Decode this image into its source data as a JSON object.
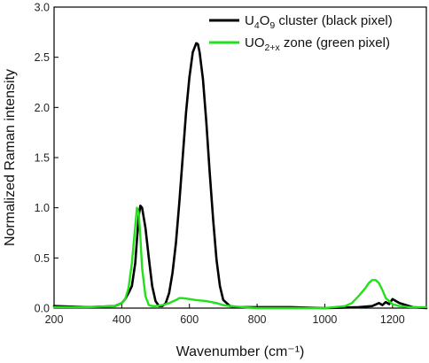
{
  "chart_data": {
    "type": "line",
    "title": "",
    "xlabel": "Wavenumber (cm⁻¹)",
    "ylabel": "Normalized Raman intensity",
    "xlim": [
      200,
      1300
    ],
    "ylim": [
      0,
      3.0
    ],
    "xticks": [
      200,
      400,
      600,
      800,
      1000,
      1200
    ],
    "xtick_labels": [
      "200",
      "400",
      "600",
      "800",
      "1000",
      "1200"
    ],
    "yticks": [
      0,
      0.5,
      1.0,
      1.5,
      2.0,
      2.5,
      3.0
    ],
    "ytick_labels": [
      "0.0",
      "0.5",
      "1.0",
      "1.5",
      "2.0",
      "2.5",
      "3.0"
    ],
    "grid": false,
    "legend_position": "top-right",
    "series": [
      {
        "name": "U4O9 cluster (black pixel)",
        "legend": {
          "base": "U",
          "sub1": "4",
          "mid": "O",
          "sub2": "9",
          "rest": " cluster (black pixel)"
        },
        "color": "#000000",
        "x": [
          200,
          300,
          380,
          400,
          410,
          420,
          430,
          440,
          450,
          455,
          460,
          470,
          480,
          490,
          500,
          510,
          520,
          530,
          540,
          550,
          560,
          570,
          580,
          590,
          600,
          610,
          620,
          625,
          630,
          640,
          650,
          660,
          670,
          680,
          690,
          700,
          720,
          740,
          800,
          900,
          1000,
          1100,
          1140,
          1160,
          1170,
          1180,
          1190,
          1200,
          1220,
          1240,
          1260,
          1300
        ],
        "y": [
          0.02,
          0.01,
          0.02,
          0.05,
          0.09,
          0.15,
          0.22,
          0.45,
          0.92,
          1.02,
          1.0,
          0.8,
          0.5,
          0.22,
          0.07,
          0.02,
          0.02,
          0.05,
          0.15,
          0.35,
          0.65,
          1.05,
          1.5,
          1.95,
          2.3,
          2.55,
          2.64,
          2.63,
          2.55,
          2.28,
          1.85,
          1.35,
          0.88,
          0.48,
          0.22,
          0.08,
          0.02,
          0.01,
          0.01,
          0.01,
          0.0,
          0.01,
          0.02,
          0.05,
          0.03,
          0.06,
          0.04,
          0.09,
          0.05,
          0.03,
          0.01,
          0.0
        ]
      },
      {
        "name": "UO2+x zone (green pixel)",
        "legend": {
          "base": "UO",
          "sub1": "2+x",
          "mid": "",
          "sub2": "",
          "rest": " zone (green pixel)"
        },
        "color": "#22e01a",
        "x": [
          200,
          300,
          380,
          400,
          410,
          420,
          430,
          440,
          445,
          450,
          455,
          460,
          470,
          480,
          490,
          500,
          520,
          540,
          560,
          570,
          580,
          600,
          620,
          650,
          680,
          700,
          720,
          760,
          800,
          900,
          1000,
          1060,
          1080,
          1100,
          1120,
          1130,
          1140,
          1150,
          1160,
          1170,
          1180,
          1200,
          1220,
          1250,
          1300
        ],
        "y": [
          0.01,
          0.01,
          0.02,
          0.05,
          0.09,
          0.2,
          0.45,
          0.82,
          1.0,
          0.95,
          0.7,
          0.4,
          0.12,
          0.03,
          0.02,
          0.02,
          0.03,
          0.05,
          0.08,
          0.1,
          0.1,
          0.09,
          0.08,
          0.07,
          0.05,
          0.03,
          0.02,
          0.01,
          0.0,
          0.0,
          0.0,
          0.02,
          0.05,
          0.12,
          0.2,
          0.25,
          0.28,
          0.28,
          0.25,
          0.18,
          0.1,
          0.04,
          0.02,
          0.01,
          0.01
        ]
      }
    ]
  }
}
